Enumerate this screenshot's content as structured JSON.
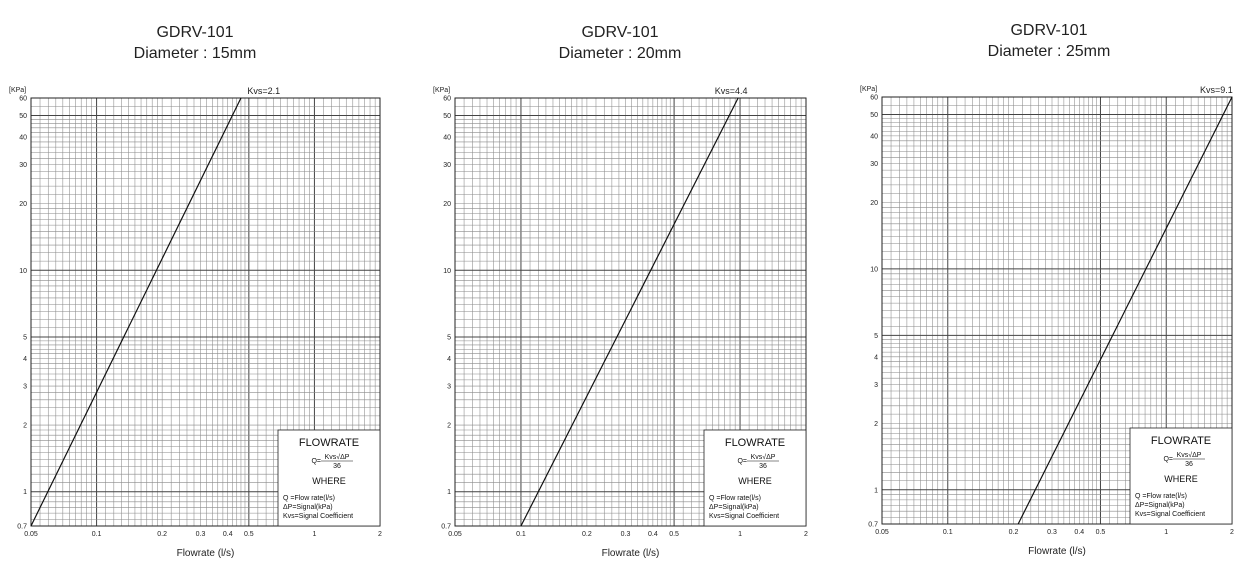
{
  "chart_data": [
    {
      "type": "line",
      "title": "GDRV-101",
      "subtitle": "Diameter : 15mm",
      "xlabel": "Flowrate (l/s)",
      "ylabel_unit": "[KPa]",
      "xscale": "log",
      "yscale": "log",
      "xlim": [
        0.05,
        2
      ],
      "ylim": [
        0.7,
        60
      ],
      "grid": true,
      "x_ticks": [
        "0.05",
        "0.1",
        "0.2",
        "0.3",
        "0.4",
        "0.5",
        "1",
        "2"
      ],
      "y_ticks": [
        "0.7",
        "1",
        "2",
        "3",
        "4",
        "5",
        "10",
        "20",
        "30",
        "40",
        "50",
        "60"
      ],
      "kvs_label": "Kvs=2.1",
      "series": [
        {
          "x": [
            0.05,
            0.46
          ],
          "y": [
            0.7,
            60
          ]
        }
      ],
      "legend": {
        "heading": "FLOWRATE",
        "formula_lhs": "Q=",
        "formula_num": "Kvs√ΔP",
        "formula_den": "36",
        "where": "WHERE",
        "items": [
          "Q =Flow rate(l/s)",
          "ΔP=Signal(kPa)",
          "Kvs=Signal Coefficient"
        ]
      }
    },
    {
      "type": "line",
      "title": "GDRV-101",
      "subtitle": "Diameter : 20mm",
      "xlabel": "Flowrate (l/s)",
      "ylabel_unit": "[KPa]",
      "xscale": "log",
      "yscale": "log",
      "xlim": [
        0.05,
        2
      ],
      "ylim": [
        0.7,
        60
      ],
      "grid": true,
      "x_ticks": [
        "0.05",
        "0.1",
        "0.2",
        "0.3",
        "0.4",
        "0.5",
        "1",
        "2"
      ],
      "y_ticks": [
        "0.7",
        "1",
        "2",
        "3",
        "4",
        "5",
        "10",
        "20",
        "30",
        "40",
        "50",
        "60"
      ],
      "kvs_label": "Kvs=4.4",
      "series": [
        {
          "x": [
            0.1,
            0.98
          ],
          "y": [
            0.7,
            60
          ]
        }
      ],
      "legend": {
        "heading": "FLOWRATE",
        "formula_lhs": "Q=",
        "formula_num": "Kvs√ΔP",
        "formula_den": "36",
        "where": "WHERE",
        "items": [
          "Q =Flow rate(l/s)",
          "ΔP=Signal(kPa)",
          "Kvs=Signal Coefficient"
        ]
      }
    },
    {
      "type": "line",
      "title": "GDRV-101",
      "subtitle": "Diameter : 25mm",
      "xlabel": "Flowrate (l/s)",
      "ylabel_unit": "[KPa]",
      "xscale": "log",
      "yscale": "log",
      "xlim": [
        0.05,
        2
      ],
      "ylim": [
        0.7,
        60
      ],
      "grid": true,
      "x_ticks": [
        "0.05",
        "0.1",
        "0.2",
        "0.3",
        "0.4",
        "0.5",
        "1",
        "2"
      ],
      "y_ticks": [
        "0.7",
        "1",
        "2",
        "3",
        "4",
        "5",
        "10",
        "20",
        "30",
        "40",
        "50",
        "60"
      ],
      "kvs_label": "Kvs=9.1",
      "series": [
        {
          "x": [
            0.21,
            2.0
          ],
          "y": [
            0.7,
            60
          ]
        }
      ],
      "legend": {
        "heading": "FLOWRATE",
        "formula_lhs": "Q=",
        "formula_num": "Kvs√ΔP",
        "formula_den": "36",
        "where": "WHERE",
        "items": [
          "Q =Flow rate(l/s)",
          "ΔP=Signal(kPa)",
          "Kvs=Signal Coefficient"
        ]
      }
    }
  ]
}
